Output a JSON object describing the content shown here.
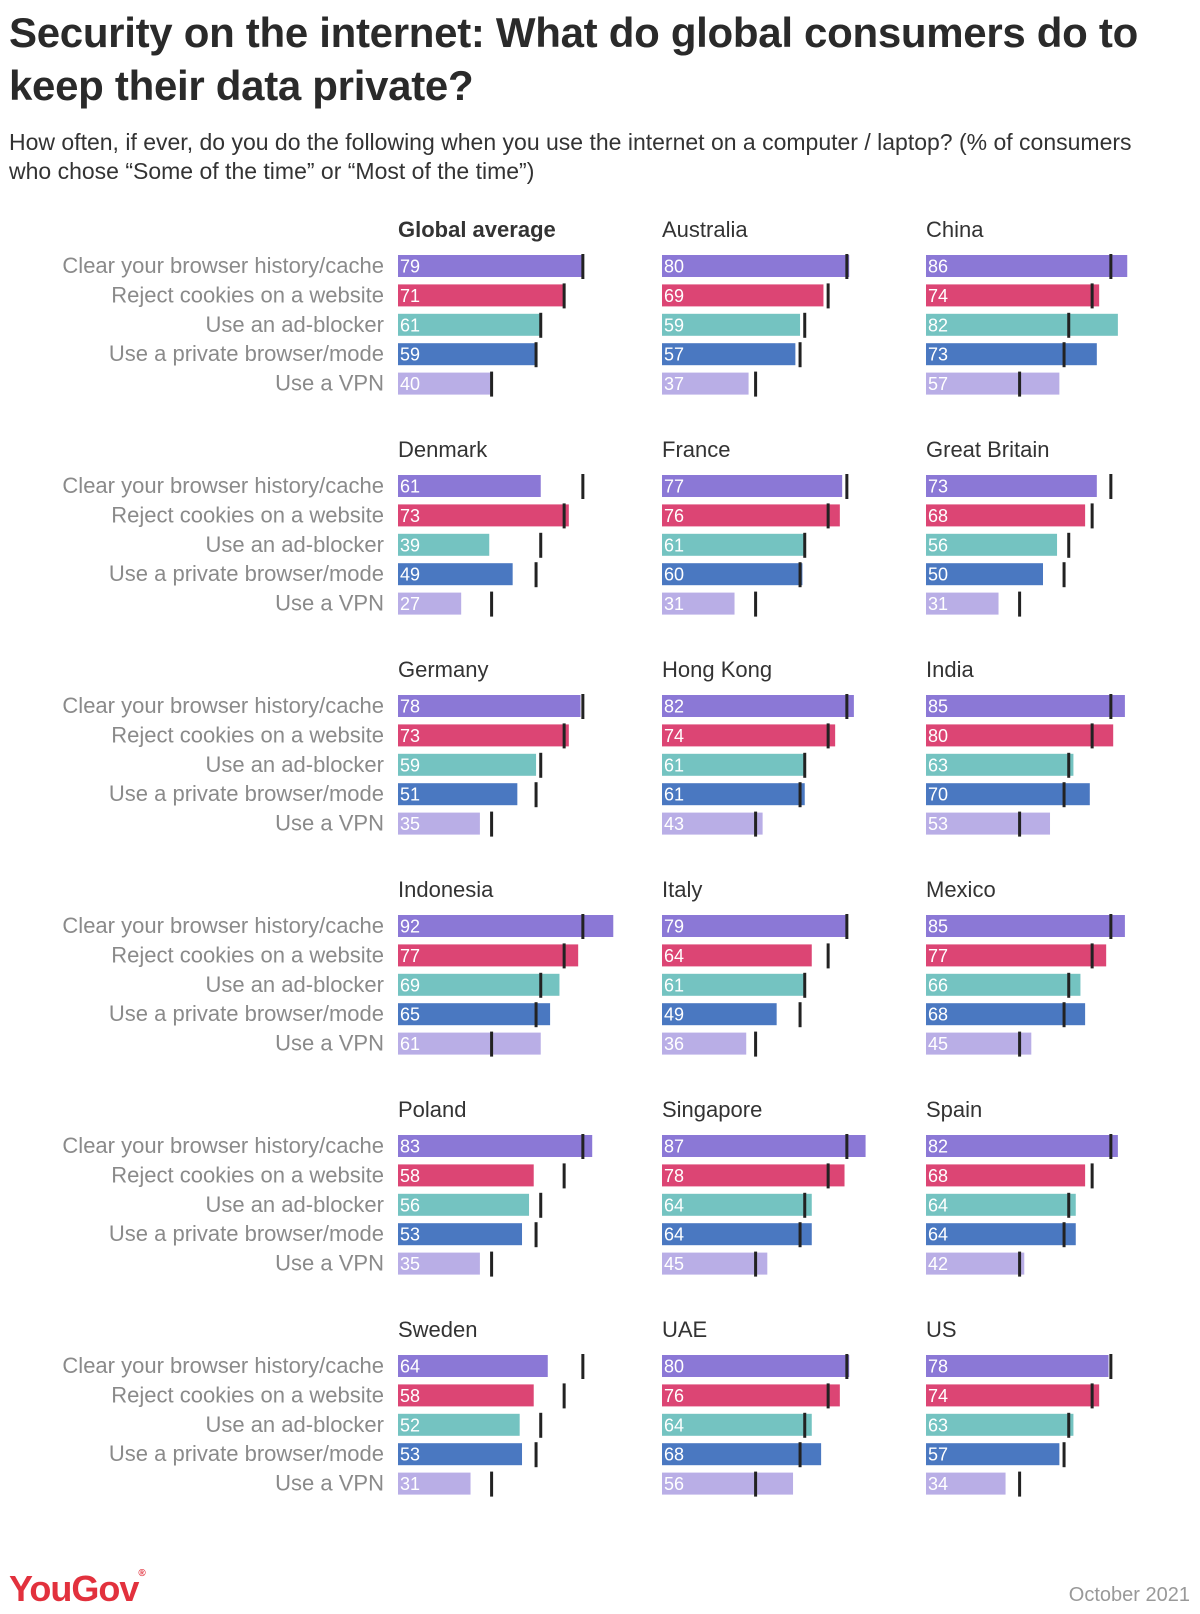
{
  "title": "Security on the internet: What do global consumers do to keep their data private?",
  "subtitle": "How often, if ever, do you do the following when you use the internet on a computer / laptop? (% of consumers who chose “Some of the time” or “Most of the time”)",
  "footer": {
    "logo": "YouGov",
    "date": "October 2021"
  },
  "colors": {
    "clear": "#8b78d6",
    "cookies": "#dc4574",
    "adblocker": "#74c3c1",
    "private": "#4a78c1",
    "vpn": "#b9aee6",
    "marker": "#222222"
  },
  "chart_data": {
    "type": "bar",
    "orientation": "horizontal",
    "xlim": [
      0,
      100
    ],
    "categories": [
      "Clear your browser history/cache",
      "Reject cookies on a website",
      "Use an ad-blocker",
      "Use a private browser/mode",
      "Use a VPN"
    ],
    "reference": {
      "name": "Global average",
      "values": [
        79,
        71,
        61,
        59,
        40
      ]
    },
    "panels": [
      {
        "name": "Global average",
        "values": [
          79,
          71,
          61,
          59,
          40
        ]
      },
      {
        "name": "Australia",
        "values": [
          80,
          69,
          59,
          57,
          37
        ]
      },
      {
        "name": "China",
        "values": [
          86,
          74,
          82,
          73,
          57
        ]
      },
      {
        "name": "Denmark",
        "values": [
          61,
          73,
          39,
          49,
          27
        ]
      },
      {
        "name": "France",
        "values": [
          77,
          76,
          61,
          60,
          31
        ]
      },
      {
        "name": "Great Britain",
        "values": [
          73,
          68,
          56,
          50,
          31
        ]
      },
      {
        "name": "Germany",
        "values": [
          78,
          73,
          59,
          51,
          35
        ]
      },
      {
        "name": "Hong  Kong",
        "values": [
          82,
          74,
          61,
          61,
          43
        ]
      },
      {
        "name": "India",
        "values": [
          85,
          80,
          63,
          70,
          53
        ]
      },
      {
        "name": "Indonesia",
        "values": [
          92,
          77,
          69,
          65,
          61
        ]
      },
      {
        "name": "Italy",
        "values": [
          79,
          64,
          61,
          49,
          36
        ]
      },
      {
        "name": "Mexico",
        "values": [
          85,
          77,
          66,
          68,
          45
        ]
      },
      {
        "name": "Poland",
        "values": [
          83,
          58,
          56,
          53,
          35
        ]
      },
      {
        "name": "Singapore",
        "values": [
          87,
          78,
          64,
          64,
          45
        ]
      },
      {
        "name": "Spain",
        "values": [
          82,
          68,
          64,
          64,
          42
        ]
      },
      {
        "name": "Sweden",
        "values": [
          64,
          58,
          52,
          53,
          31
        ]
      },
      {
        "name": "UAE",
        "values": [
          80,
          76,
          64,
          68,
          56
        ]
      },
      {
        "name": "US",
        "values": [
          78,
          74,
          63,
          57,
          34
        ]
      }
    ]
  }
}
